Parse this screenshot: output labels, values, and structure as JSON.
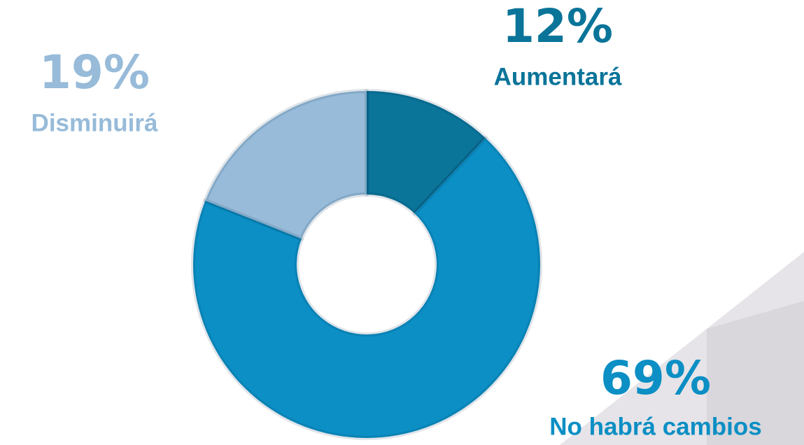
{
  "chart_data": {
    "type": "donut",
    "categories": [
      "Aumentará",
      "No habrá cambios",
      "Disminuirá"
    ],
    "values": [
      12,
      69,
      19
    ],
    "value_labels": [
      "12%",
      "69%",
      "19%"
    ],
    "colors": [
      "#0a7499",
      "#0b8fc4",
      "#97bbd9"
    ]
  }
}
